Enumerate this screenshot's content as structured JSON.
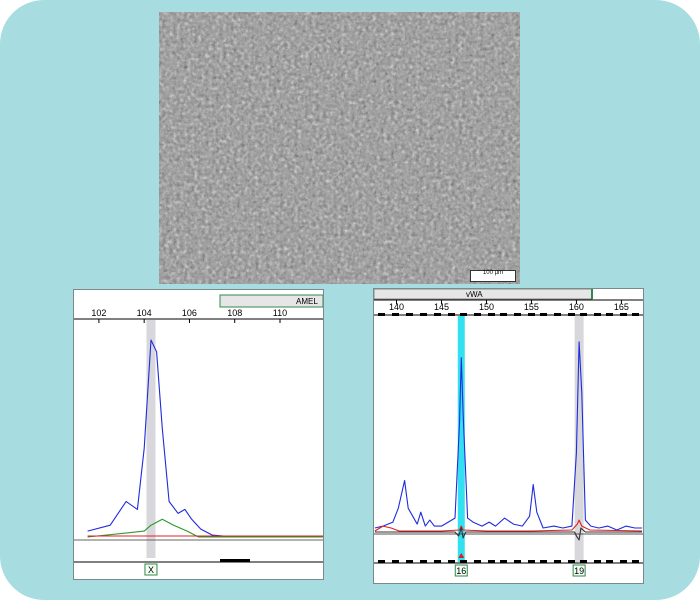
{
  "microscopy": {
    "scale_bar_label": "100 µm"
  },
  "chart_data": [
    {
      "type": "line",
      "marker": "AMEL",
      "x_ticks": [
        102,
        104,
        106,
        108,
        110
      ],
      "xlim": [
        100.9,
        111.9
      ],
      "highlight_x": 104.3,
      "alleles": [
        {
          "label": "X",
          "x": 104.3
        }
      ],
      "series": [
        {
          "color": "#1f2bdc",
          "x": [
            101.5,
            102.5,
            103.2,
            103.7,
            104.0,
            104.3,
            104.55,
            104.8,
            105.1,
            105.5,
            105.8,
            106.1,
            106.5,
            107.0,
            108.0,
            111.9
          ],
          "y": [
            3,
            6,
            18,
            14,
            45,
            100,
            94,
            55,
            18,
            12,
            14,
            9,
            4,
            1,
            0,
            0
          ]
        },
        {
          "color": "#2a9a2a",
          "x": [
            101.5,
            104.0,
            104.3,
            104.8,
            105.3,
            105.9,
            106.4,
            111.9
          ],
          "y": [
            0,
            3,
            6,
            9,
            6,
            3,
            0,
            0
          ]
        },
        {
          "color": "#e02020",
          "x": [
            101.5,
            111.9
          ],
          "y": [
            0.5,
            0.5
          ]
        }
      ]
    },
    {
      "type": "line",
      "marker": "vWA",
      "x_ticks": [
        140,
        145,
        150,
        155,
        160,
        165
      ],
      "xlim": [
        137.5,
        167.4
      ],
      "highlight_x": [
        147.2,
        160.3
      ],
      "alleles": [
        {
          "label": "16",
          "x": 147.2
        },
        {
          "label": "19",
          "x": 160.3
        }
      ],
      "series": [
        {
          "color": "#1f2bdc",
          "x": [
            137.6,
            138.5,
            139.6,
            140.2,
            140.9,
            141.3,
            141.8,
            142.3,
            142.7,
            143.2,
            143.7,
            144.2,
            145.0,
            146.5,
            147.0,
            147.2,
            147.4,
            147.9,
            148.5,
            149.5,
            150.3,
            151.0,
            152.0,
            153.0,
            154.0,
            154.8,
            155.2,
            155.6,
            156.3,
            157.5,
            158.5,
            159.5,
            160.0,
            160.3,
            160.6,
            161.0,
            161.6,
            162.5,
            163.5,
            164.5,
            165.5,
            166.5,
            167.3
          ],
          "y": [
            2,
            3,
            5,
            12,
            26,
            12,
            8,
            4,
            10,
            3,
            6,
            3,
            3,
            7,
            55,
            88,
            60,
            7,
            5,
            3,
            5,
            3,
            7,
            4,
            3,
            8,
            24,
            10,
            2,
            3,
            2,
            3,
            40,
            96,
            70,
            6,
            3,
            2,
            3,
            1,
            3,
            2,
            2
          ]
        },
        {
          "color": "#e02020",
          "x": [
            137.6,
            138.5,
            139.4,
            140.3,
            145.0,
            147.0,
            147.2,
            147.4,
            150.0,
            155.0,
            159.5,
            160.1,
            160.3,
            160.6,
            161.5,
            167.3
          ],
          "y": [
            0.5,
            3,
            2,
            0.5,
            0.5,
            1,
            3,
            1,
            0.5,
            0.5,
            1,
            4,
            6,
            3,
            1,
            0.5
          ]
        },
        {
          "color": "#333333",
          "x": [
            137.6,
            146.5,
            146.9,
            147.2,
            147.4,
            147.7,
            159.8,
            160.0,
            160.3,
            160.5,
            161.0,
            167.3
          ],
          "y": [
            0,
            0,
            -2,
            2,
            -3,
            0,
            0,
            -2,
            -4,
            2,
            0,
            0
          ]
        }
      ]
    }
  ]
}
